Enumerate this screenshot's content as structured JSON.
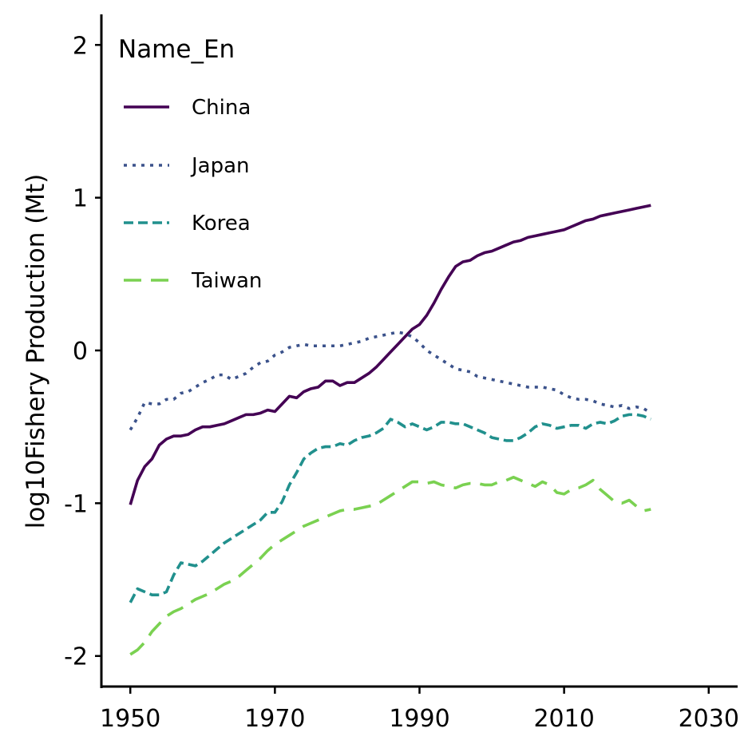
{
  "chart_data": {
    "type": "line",
    "title": "",
    "xlabel": "",
    "ylabel": "log10Fishery Production (Mt)",
    "xlim": [
      1946,
      2034
    ],
    "ylim": [
      -2.2,
      2.2
    ],
    "xticks": [
      1950,
      1970,
      1990,
      2010,
      2030
    ],
    "yticks": [
      -2,
      -1,
      0,
      1,
      2
    ],
    "ytick_labels": [
      "-2",
      "-1",
      "0",
      "1",
      "2"
    ],
    "grid": false,
    "legend": {
      "title": "Name_En",
      "position": "top-left"
    },
    "series": [
      {
        "name": "China",
        "color": "#440154",
        "dash": "solid",
        "x": [
          1950,
          1951,
          1952,
          1953,
          1954,
          1955,
          1956,
          1957,
          1958,
          1959,
          1960,
          1961,
          1962,
          1963,
          1964,
          1965,
          1966,
          1967,
          1968,
          1969,
          1970,
          1971,
          1972,
          1973,
          1974,
          1975,
          1976,
          1977,
          1978,
          1979,
          1980,
          1981,
          1982,
          1983,
          1984,
          1985,
          1986,
          1987,
          1988,
          1989,
          1990,
          1991,
          1992,
          1993,
          1994,
          1995,
          1996,
          1997,
          1998,
          1999,
          2000,
          2001,
          2002,
          2003,
          2004,
          2005,
          2006,
          2007,
          2008,
          2009,
          2010,
          2011,
          2012,
          2013,
          2014,
          2015,
          2016,
          2017,
          2018,
          2019,
          2020,
          2021,
          2022
        ],
        "values": [
          -1.01,
          -0.85,
          -0.76,
          -0.71,
          -0.62,
          -0.58,
          -0.56,
          -0.56,
          -0.55,
          -0.52,
          -0.5,
          -0.5,
          -0.49,
          -0.48,
          -0.46,
          -0.44,
          -0.42,
          -0.42,
          -0.41,
          -0.39,
          -0.4,
          -0.35,
          -0.3,
          -0.31,
          -0.27,
          -0.25,
          -0.24,
          -0.2,
          -0.2,
          -0.23,
          -0.21,
          -0.21,
          -0.18,
          -0.15,
          -0.11,
          -0.06,
          -0.01,
          0.04,
          0.09,
          0.14,
          0.17,
          0.23,
          0.31,
          0.4,
          0.48,
          0.55,
          0.58,
          0.59,
          0.62,
          0.64,
          0.65,
          0.67,
          0.69,
          0.71,
          0.72,
          0.74,
          0.75,
          0.76,
          0.77,
          0.78,
          0.79,
          0.81,
          0.83,
          0.85,
          0.86,
          0.88,
          0.89,
          0.9,
          0.91,
          0.92,
          0.93,
          0.94,
          0.95
        ]
      },
      {
        "name": "Japan",
        "color": "#3b528b",
        "dash": "dotted",
        "x": [
          1950,
          1951,
          1952,
          1953,
          1954,
          1955,
          1956,
          1957,
          1958,
          1959,
          1960,
          1961,
          1962,
          1963,
          1964,
          1965,
          1966,
          1967,
          1968,
          1969,
          1970,
          1971,
          1972,
          1973,
          1974,
          1975,
          1976,
          1977,
          1978,
          1979,
          1980,
          1981,
          1982,
          1983,
          1984,
          1985,
          1986,
          1987,
          1988,
          1989,
          1990,
          1991,
          1992,
          1993,
          1994,
          1995,
          1996,
          1997,
          1998,
          1999,
          2000,
          2001,
          2002,
          2003,
          2004,
          2005,
          2006,
          2007,
          2008,
          2009,
          2010,
          2011,
          2012,
          2013,
          2014,
          2015,
          2016,
          2017,
          2018,
          2019,
          2020,
          2021,
          2022
        ],
        "values": [
          -0.52,
          -0.44,
          -0.34,
          -0.35,
          -0.35,
          -0.32,
          -0.32,
          -0.28,
          -0.27,
          -0.24,
          -0.21,
          -0.19,
          -0.16,
          -0.16,
          -0.19,
          -0.17,
          -0.15,
          -0.11,
          -0.08,
          -0.07,
          -0.03,
          -0.01,
          0.02,
          0.03,
          0.04,
          0.03,
          0.03,
          0.03,
          0.03,
          0.03,
          0.04,
          0.05,
          0.06,
          0.08,
          0.09,
          0.1,
          0.11,
          0.12,
          0.11,
          0.09,
          0.05,
          0.0,
          -0.03,
          -0.06,
          -0.09,
          -0.12,
          -0.13,
          -0.14,
          -0.17,
          -0.18,
          -0.19,
          -0.2,
          -0.21,
          -0.22,
          -0.23,
          -0.24,
          -0.24,
          -0.24,
          -0.25,
          -0.26,
          -0.29,
          -0.31,
          -0.32,
          -0.32,
          -0.33,
          -0.35,
          -0.36,
          -0.37,
          -0.36,
          -0.38,
          -0.37,
          -0.38,
          -0.41
        ]
      },
      {
        "name": "Korea",
        "color": "#21908d",
        "dash": "dashed",
        "x": [
          1950,
          1951,
          1952,
          1953,
          1954,
          1955,
          1956,
          1957,
          1958,
          1959,
          1960,
          1961,
          1962,
          1963,
          1964,
          1965,
          1966,
          1967,
          1968,
          1969,
          1970,
          1971,
          1972,
          1973,
          1974,
          1975,
          1976,
          1977,
          1978,
          1979,
          1980,
          1981,
          1982,
          1983,
          1984,
          1985,
          1986,
          1987,
          1988,
          1989,
          1990,
          1991,
          1992,
          1993,
          1994,
          1995,
          1996,
          1997,
          1998,
          1999,
          2000,
          2001,
          2002,
          2003,
          2004,
          2005,
          2006,
          2007,
          2008,
          2009,
          2010,
          2011,
          2012,
          2013,
          2014,
          2015,
          2016,
          2017,
          2018,
          2019,
          2020,
          2021,
          2022
        ],
        "values": [
          -1.65,
          -1.56,
          -1.58,
          -1.6,
          -1.6,
          -1.58,
          -1.47,
          -1.39,
          -1.4,
          -1.41,
          -1.38,
          -1.34,
          -1.3,
          -1.26,
          -1.23,
          -1.2,
          -1.17,
          -1.14,
          -1.11,
          -1.06,
          -1.06,
          -0.99,
          -0.88,
          -0.8,
          -0.71,
          -0.67,
          -0.64,
          -0.63,
          -0.63,
          -0.61,
          -0.62,
          -0.59,
          -0.57,
          -0.56,
          -0.54,
          -0.51,
          -0.45,
          -0.47,
          -0.5,
          -0.48,
          -0.5,
          -0.52,
          -0.5,
          -0.47,
          -0.47,
          -0.48,
          -0.48,
          -0.5,
          -0.52,
          -0.54,
          -0.57,
          -0.58,
          -0.59,
          -0.59,
          -0.57,
          -0.54,
          -0.5,
          -0.48,
          -0.49,
          -0.51,
          -0.5,
          -0.49,
          -0.49,
          -0.51,
          -0.48,
          -0.47,
          -0.48,
          -0.46,
          -0.43,
          -0.42,
          -0.42,
          -0.43,
          -0.45
        ]
      },
      {
        "name": "Taiwan",
        "color": "#7ad151",
        "dash": "longdash",
        "x": [
          1950,
          1951,
          1952,
          1953,
          1954,
          1955,
          1956,
          1957,
          1958,
          1959,
          1960,
          1961,
          1962,
          1963,
          1964,
          1965,
          1966,
          1967,
          1968,
          1969,
          1970,
          1971,
          1972,
          1973,
          1974,
          1975,
          1976,
          1977,
          1978,
          1979,
          1980,
          1981,
          1982,
          1983,
          1984,
          1985,
          1986,
          1987,
          1988,
          1989,
          1990,
          1991,
          1992,
          1993,
          1994,
          1995,
          1996,
          1997,
          1998,
          1999,
          2000,
          2001,
          2002,
          2003,
          2004,
          2005,
          2006,
          2007,
          2008,
          2009,
          2010,
          2011,
          2012,
          2013,
          2014,
          2015,
          2016,
          2017,
          2018,
          2019,
          2020,
          2021,
          2022
        ],
        "values": [
          -1.99,
          -1.96,
          -1.91,
          -1.84,
          -1.79,
          -1.74,
          -1.71,
          -1.69,
          -1.66,
          -1.63,
          -1.61,
          -1.59,
          -1.56,
          -1.53,
          -1.51,
          -1.48,
          -1.44,
          -1.4,
          -1.36,
          -1.31,
          -1.27,
          -1.24,
          -1.21,
          -1.18,
          -1.15,
          -1.13,
          -1.11,
          -1.09,
          -1.07,
          -1.05,
          -1.04,
          -1.04,
          -1.03,
          -1.02,
          -1.01,
          -0.98,
          -0.95,
          -0.92,
          -0.89,
          -0.86,
          -0.86,
          -0.87,
          -0.86,
          -0.88,
          -0.89,
          -0.9,
          -0.88,
          -0.87,
          -0.87,
          -0.88,
          -0.88,
          -0.86,
          -0.85,
          -0.83,
          -0.85,
          -0.87,
          -0.89,
          -0.86,
          -0.88,
          -0.93,
          -0.94,
          -0.91,
          -0.9,
          -0.88,
          -0.85,
          -0.91,
          -0.95,
          -0.99,
          -1.0,
          -0.98,
          -1.02,
          -1.05,
          -1.04
        ]
      }
    ]
  }
}
